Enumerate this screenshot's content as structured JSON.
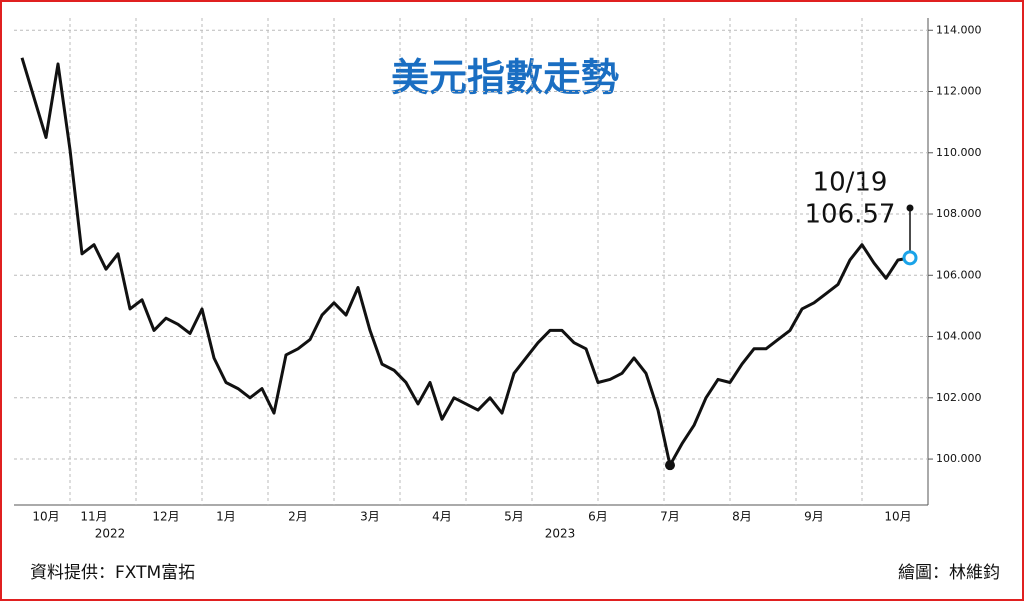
{
  "chart_data": {
    "type": "line",
    "title": "美元指數走勢",
    "categories": [
      null,
      null,
      "10月",
      null,
      null,
      null,
      "11月",
      null,
      null,
      null,
      null,
      null,
      "12月",
      null,
      null,
      null,
      null,
      "1月",
      null,
      null,
      null,
      null,
      null,
      "2月",
      null,
      null,
      null,
      null,
      null,
      "3月",
      null,
      null,
      null,
      null,
      null,
      "4月",
      null,
      null,
      null,
      null,
      null,
      "5月",
      null,
      null,
      null,
      null,
      null,
      null,
      "6月",
      null,
      null,
      null,
      null,
      null,
      "7月",
      null,
      null,
      null,
      null,
      null,
      "8月",
      null,
      null,
      null,
      null,
      null,
      "9月",
      null,
      null,
      null,
      null,
      null,
      null,
      "10月",
      null
    ],
    "series": [
      {
        "name": "美元指數",
        "color": "#111111",
        "values": [
          113.1,
          111.8,
          110.5,
          112.9,
          110.1,
          106.7,
          107.0,
          106.2,
          106.7,
          104.9,
          105.2,
          104.2,
          104.6,
          104.4,
          104.1,
          104.9,
          103.3,
          102.5,
          102.3,
          102.0,
          102.3,
          101.5,
          103.4,
          103.6,
          103.9,
          104.7,
          105.1,
          104.7,
          105.6,
          104.2,
          103.1,
          102.9,
          102.5,
          101.8,
          102.5,
          101.3,
          102.0,
          101.8,
          101.6,
          102.0,
          101.5,
          102.8,
          103.3,
          103.8,
          104.2,
          104.2,
          103.8,
          103.6,
          102.5,
          102.6,
          102.8,
          103.3,
          102.8,
          101.6,
          99.8,
          100.5,
          101.1,
          102.0,
          102.6,
          102.5,
          103.1,
          103.6,
          103.6,
          103.9,
          104.2,
          104.9,
          105.1,
          105.4,
          105.7,
          106.5,
          107.0,
          106.4,
          105.9,
          106.5,
          106.57
        ]
      }
    ],
    "ylim": [
      98.5,
      114.4
    ],
    "yticks": [
      {
        "value": 100,
        "label": "100.000"
      },
      {
        "value": 102,
        "label": "102.000"
      },
      {
        "value": 104,
        "label": "104.000"
      },
      {
        "value": 106,
        "label": "106.000"
      },
      {
        "value": 108,
        "label": "108.000"
      },
      {
        "value": 110,
        "label": "110.000"
      },
      {
        "value": 112,
        "label": "112.000"
      },
      {
        "value": 114,
        "label": "114.000"
      }
    ],
    "grid": true,
    "years": [
      "2022",
      "2023"
    ],
    "annotation": "10/19",
    "source": "資料提供：FXTM富拓",
    "credit": "繪圖：林維鈞"
  }
}
